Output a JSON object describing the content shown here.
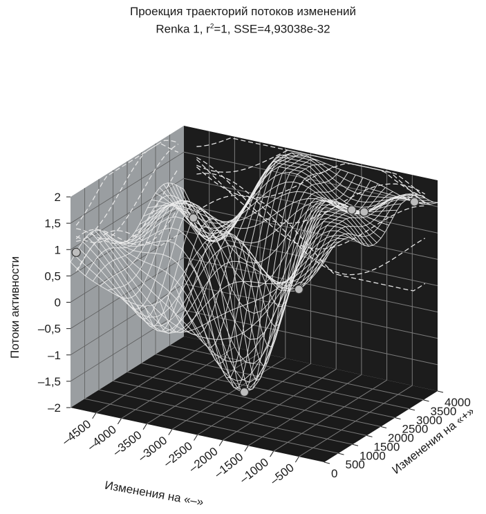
{
  "chart_data": {
    "type": "surface",
    "title": "Проекция траекторий потоков изменений",
    "subtitle_prefix": "Renka 1, r",
    "subtitle_sup": "2",
    "subtitle_suffix": "=1, SSE=4,93038e-32",
    "xlabel": "Изменения на «–»",
    "ylabel": "Изменения на «+»",
    "zlabel": "Потоки активности",
    "xlim": [
      -5000,
      0
    ],
    "ylim": [
      0,
      4000
    ],
    "zlim": [
      -2,
      2
    ],
    "x_ticks": [
      "–4500",
      "–4000",
      "–3500",
      "–3000",
      "–2500",
      "–2000",
      "–1500",
      "–1000",
      "–500"
    ],
    "y_ticks": [
      "0",
      "500",
      "1000",
      "1500",
      "2000",
      "2500",
      "3000",
      "3500",
      "4000"
    ],
    "z_ticks": [
      "2",
      "1,5",
      "1",
      "0,5",
      "0",
      "–0,5",
      "–1",
      "–1,5",
      "–2"
    ],
    "grid": true,
    "colors": {
      "floor": "#1a1a1a",
      "back_wall": "#1c1c1c",
      "left_wall": "#9a9ea1",
      "mesh": "#ececec",
      "point_fill": "#bdbdbd"
    }
  }
}
